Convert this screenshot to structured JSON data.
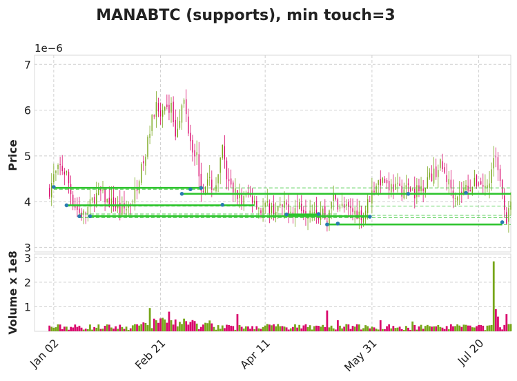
{
  "chart_data": [
    {
      "type": "candlestick",
      "title": "MANABTC (supports), min touch=3",
      "ylabel": "Price",
      "y_scale_label": "1e−6",
      "ylim": [
        2.9,
        7.2
      ],
      "yticks": [
        3,
        4,
        5,
        6,
        7
      ],
      "x_tick_labels": [
        {
          "day": 2,
          "label": "Jan 02"
        },
        {
          "day": 52,
          "label": "Feb 21"
        },
        {
          "day": 101,
          "label": "Apr 11"
        },
        {
          "day": 151,
          "label": "May 31"
        },
        {
          "day": 201,
          "label": "Jul 20"
        }
      ],
      "xlim": [
        -7,
        216
      ],
      "grid": true,
      "up_color": "#77a61a",
      "down_color": "#d9096d",
      "wick_color": "#889999",
      "support_color": "#2ec42e",
      "marker_color": "#2a7cb0",
      "price_anchors": [
        [
          0,
          4.25
        ],
        [
          2,
          4.55
        ],
        [
          5,
          4.75
        ],
        [
          8,
          4.6
        ],
        [
          11,
          4.0
        ],
        [
          14,
          3.75
        ],
        [
          16,
          3.72
        ],
        [
          18,
          3.85
        ],
        [
          21,
          4.1
        ],
        [
          24,
          4.2
        ],
        [
          27,
          4.0
        ],
        [
          30,
          3.95
        ],
        [
          33,
          3.8
        ],
        [
          36,
          3.85
        ],
        [
          39,
          4.0
        ],
        [
          42,
          4.55
        ],
        [
          45,
          5.0
        ],
        [
          48,
          5.9
        ],
        [
          50,
          6.1
        ],
        [
          52,
          5.8
        ],
        [
          55,
          6.0
        ],
        [
          57,
          6.1
        ],
        [
          59,
          5.5
        ],
        [
          61,
          5.9
        ],
        [
          63,
          6.2
        ],
        [
          65,
          5.6
        ],
        [
          67,
          5.2
        ],
        [
          69,
          5.0
        ],
        [
          71,
          4.3
        ],
        [
          73,
          4.4
        ],
        [
          75,
          4.4
        ],
        [
          77,
          4.3
        ],
        [
          79,
          4.5
        ],
        [
          81,
          5.2
        ],
        [
          83,
          4.5
        ],
        [
          85,
          4.3
        ],
        [
          87,
          4.2
        ],
        [
          90,
          4.0
        ],
        [
          93,
          4.15
        ],
        [
          96,
          4.05
        ],
        [
          99,
          3.8
        ],
        [
          102,
          3.9
        ],
        [
          105,
          3.82
        ],
        [
          108,
          3.85
        ],
        [
          111,
          3.9
        ],
        [
          114,
          3.8
        ],
        [
          117,
          3.95
        ],
        [
          120,
          3.8
        ],
        [
          123,
          3.9
        ],
        [
          126,
          3.7
        ],
        [
          128,
          3.8
        ],
        [
          130,
          3.55
        ],
        [
          132,
          4.1
        ],
        [
          135,
          3.95
        ],
        [
          138,
          3.85
        ],
        [
          141,
          3.8
        ],
        [
          144,
          3.75
        ],
        [
          147,
          3.7
        ],
        [
          150,
          4.1
        ],
        [
          153,
          4.4
        ],
        [
          156,
          4.5
        ],
        [
          159,
          4.35
        ],
        [
          162,
          4.3
        ],
        [
          165,
          4.25
        ],
        [
          168,
          4.3
        ],
        [
          171,
          4.2
        ],
        [
          174,
          4.3
        ],
        [
          177,
          4.5
        ],
        [
          180,
          4.6
        ],
        [
          183,
          4.8
        ],
        [
          186,
          4.5
        ],
        [
          189,
          4.2
        ],
        [
          192,
          4.15
        ],
        [
          195,
          4.3
        ],
        [
          198,
          4.35
        ],
        [
          201,
          4.45
        ],
        [
          204,
          4.3
        ],
        [
          206,
          4.4
        ],
        [
          208,
          5.0
        ],
        [
          210,
          4.8
        ],
        [
          212,
          4.3
        ],
        [
          214,
          3.6
        ],
        [
          216,
          3.9
        ]
      ],
      "supports": [
        {
          "level": 4.3,
          "start": 2,
          "end": 216
        },
        {
          "level": 4.27,
          "start": 2,
          "end": 71
        },
        {
          "level": 4.17,
          "start": 62,
          "end": 216
        },
        {
          "level": 3.92,
          "start": 8,
          "end": 96
        },
        {
          "level": 3.9,
          "start": 8,
          "end": 216
        },
        {
          "level": 3.73,
          "start": 14,
          "end": 135
        },
        {
          "level": 3.7,
          "start": 19,
          "end": 216
        },
        {
          "level": 3.68,
          "start": 19,
          "end": 150
        },
        {
          "level": 3.65,
          "start": 14,
          "end": 216
        },
        {
          "level": 3.5,
          "start": 130,
          "end": 216
        },
        {
          "level": 3.5,
          "start": 130,
          "end": 212
        }
      ],
      "support_drawn_as": [
        {
          "level": 4.3,
          "start": 2,
          "end": 71,
          "solid": true
        },
        {
          "level": 4.17,
          "start": 62,
          "end": 216,
          "solid": true
        },
        {
          "level": 3.92,
          "start": 8,
          "end": 96,
          "solid": true
        },
        {
          "level": 3.68,
          "start": 19,
          "end": 150,
          "solid": true
        },
        {
          "level": 3.72,
          "start": 111,
          "end": 126,
          "solid": true
        },
        {
          "level": 3.5,
          "start": 130,
          "end": 212,
          "solid": true
        }
      ],
      "touch_points": [
        {
          "day": 2,
          "value": 4.32
        },
        {
          "day": 8,
          "value": 3.92
        },
        {
          "day": 14,
          "value": 3.68
        },
        {
          "day": 19,
          "value": 3.68
        },
        {
          "day": 62,
          "value": 4.17
        },
        {
          "day": 66,
          "value": 4.27
        },
        {
          "day": 71,
          "value": 4.3
        },
        {
          "day": 81,
          "value": 3.93
        },
        {
          "day": 111,
          "value": 3.72
        },
        {
          "day": 126,
          "value": 3.73
        },
        {
          "day": 130,
          "value": 3.5
        },
        {
          "day": 135,
          "value": 3.52
        },
        {
          "day": 150,
          "value": 3.67
        },
        {
          "day": 168,
          "value": 4.17
        },
        {
          "day": 195,
          "value": 4.19
        },
        {
          "day": 212,
          "value": 3.55
        }
      ]
    },
    {
      "type": "bar",
      "ylabel": "Volume x 1e8",
      "ylim": [
        0,
        3.15
      ],
      "yticks": [
        1,
        2,
        3
      ],
      "grid": true,
      "volume_spikes": [
        {
          "day": 47,
          "value": 0.95
        },
        {
          "day": 53,
          "value": 0.55
        },
        {
          "day": 56,
          "value": 0.8
        },
        {
          "day": 88,
          "value": 0.7
        },
        {
          "day": 130,
          "value": 0.85
        },
        {
          "day": 135,
          "value": 0.45
        },
        {
          "day": 155,
          "value": 0.45
        },
        {
          "day": 170,
          "value": 0.4
        },
        {
          "day": 208,
          "value": 2.85
        },
        {
          "day": 209,
          "value": 0.9
        },
        {
          "day": 210,
          "value": 0.6
        },
        {
          "day": 214,
          "value": 0.7
        }
      ]
    }
  ]
}
